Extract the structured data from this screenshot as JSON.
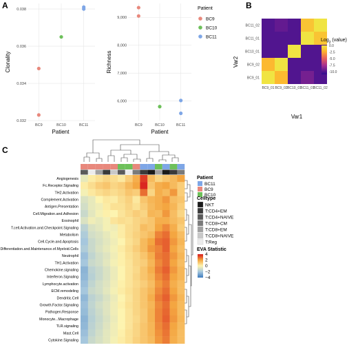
{
  "panels": {
    "a": {
      "letter": "A"
    },
    "b": {
      "letter": "B"
    },
    "c": {
      "letter": "C"
    }
  },
  "colors": {
    "BC9": "#E8887C",
    "BC10": "#6DC05A",
    "BC11": "#7EA6E6"
  },
  "chart_data": [
    {
      "type": "scatter",
      "id": "clonality",
      "xlabel": "Patient",
      "ylabel": "Clonality",
      "categories": [
        "BC9",
        "BC10",
        "BC11"
      ],
      "ylim": [
        0.032,
        0.0383
      ],
      "yticks": [
        0.032,
        0.034,
        0.036,
        0.038
      ],
      "ytick_labels": [
        "0.032",
        "0.034",
        "0.036",
        "0.038"
      ],
      "grid": true,
      "series": [
        {
          "name": "BC9",
          "category": "BC9",
          "y": [
            0.0348,
            0.0323
          ]
        },
        {
          "name": "BC10",
          "category": "BC10",
          "y": [
            0.0365
          ]
        },
        {
          "name": "BC11",
          "category": "BC11",
          "y": [
            0.0381,
            0.038
          ]
        }
      ]
    },
    {
      "type": "scatter",
      "id": "richness",
      "xlabel": "Patient",
      "ylabel": "Richness",
      "categories": [
        "BC9",
        "BC10",
        "BC11"
      ],
      "ylim": [
        5300,
        9500
      ],
      "yticks": [
        6000,
        7000,
        8000,
        9000
      ],
      "ytick_labels": [
        "6,000",
        "7,000",
        "8,000",
        "9,000"
      ],
      "grid": true,
      "legend": {
        "title": "Patient",
        "placement": "right",
        "entries": [
          "BC9",
          "BC10",
          "BC11"
        ]
      },
      "series": [
        {
          "name": "BC9",
          "category": "BC9",
          "y": [
            9350,
            9050
          ]
        },
        {
          "name": "BC10",
          "category": "BC10",
          "y": [
            5800
          ]
        },
        {
          "name": "BC11",
          "category": "BC11",
          "y": [
            6020,
            5560
          ]
        }
      ]
    },
    {
      "type": "heatmap",
      "id": "correlation",
      "xlabel": "Var1",
      "ylabel": "Var2",
      "x": [
        "BC9_01",
        "BC9_02",
        "BC10_01",
        "BC11_01",
        "BC11_02"
      ],
      "y": [
        "BC9_01",
        "BC9_02",
        "BC10_01",
        "BC11_01",
        "BC11_02"
      ],
      "legend_title": "Log",
      "legend_sub": "2",
      "legend_suffix": " (value)",
      "colorbar": {
        "range": [
          -11,
          0
        ],
        "ticks": [
          0,
          -2.5,
          -5,
          -7.5,
          -10
        ],
        "tick_labels": [
          "0.0",
          "-2.5",
          "-5.0",
          "-7.5",
          "-10.0"
        ]
      },
      "values": [
        [
          0,
          -2,
          -10,
          -9,
          -10
        ],
        [
          -2,
          0,
          -10,
          -10,
          -10
        ],
        [
          -10,
          -10,
          0,
          -10,
          -10
        ],
        [
          -10,
          -10,
          -10,
          0,
          -1.5
        ],
        [
          -10,
          -9.5,
          -10,
          -1.5,
          0
        ]
      ]
    },
    {
      "type": "heatmap",
      "id": "eva",
      "rows": [
        "Angiogenesis",
        "Fc.Receptor.Signaling",
        "TH2.Activation",
        "Complement.Activation",
        "Antigen.Presentation",
        "Cell.Migration.and.Adhesion",
        "Eosinophil",
        "T.cell.Activation.and.Checkpoint.Signaling",
        "Metabolism",
        "Cell.Cycle.and.Apoptosis",
        "Differentiation.and.Maintenance.of.Myeloid.Cells",
        "Neutrophil",
        "TH1.Activation",
        "Chemokine.signaling",
        "Interferon.Signaling",
        "Lymphocyte.activation",
        "ECM.remodeling",
        "Dendritic.Cell",
        "Growth.Factor.Signaling",
        "Pathogen.Response",
        "Monocyte...Macrophage",
        "TLR.signaling",
        "Mast.Cell",
        "Cytokine.Signaling"
      ],
      "columns": 14,
      "patient_annotation": [
        "BC9",
        "BC9",
        "BC9",
        "BC9",
        "BC9",
        "BC10",
        "BC10",
        "BC9",
        "BC11",
        "BC11",
        "BC10",
        "BC11",
        "BC10",
        "BC11"
      ],
      "celltype_annotation": [
        "T:CD4+NAIVE",
        "T:Reg",
        "T:CD8+EM",
        "T:CD4+EM",
        "T:CD8+NAIVE",
        "T:CD4+NAIVE",
        "T:Reg",
        "T:CD8+CM",
        "T:CD4+EM",
        "NKT",
        "T:CD8+EM",
        "NKT",
        "T:CD4+EM",
        "T:CD8+CM"
      ],
      "colorbar": {
        "range": [
          -4,
          4
        ],
        "ticks": [
          4,
          2,
          0,
          -2,
          -4
        ],
        "tick_labels": [
          "4",
          "2",
          "0",
          "−2",
          "−4"
        ]
      },
      "values": [
        [
          -0.5,
          0.2,
          0.5,
          0.8,
          0.6,
          0.3,
          1.0,
          1.8,
          3.5,
          1.5,
          0.8,
          1.2,
          1.5,
          2.0
        ],
        [
          0.2,
          0.6,
          1.0,
          1.2,
          0.8,
          1.0,
          1.5,
          2.0,
          3.8,
          1.2,
          1.8,
          2.0,
          1.5,
          1.0
        ],
        [
          -0.2,
          0.3,
          0.6,
          0.8,
          0.6,
          0.8,
          1.2,
          1.0,
          2.8,
          0.8,
          1.8,
          1.5,
          2.2,
          1.0
        ],
        [
          -0.8,
          -0.5,
          0.0,
          0.3,
          0.2,
          0.6,
          0.9,
          0.3,
          1.2,
          1.6,
          1.8,
          2.2,
          1.4,
          1.2
        ],
        [
          -1.0,
          -0.5,
          -0.3,
          0.2,
          0.5,
          0.5,
          0.8,
          0.5,
          1.0,
          1.5,
          1.8,
          2.0,
          1.6,
          1.0
        ],
        [
          -1.2,
          -0.6,
          -0.2,
          0.1,
          0.0,
          0.4,
          0.7,
          1.0,
          0.8,
          1.6,
          1.5,
          2.2,
          1.4,
          0.8
        ],
        [
          -0.8,
          -0.3,
          -0.5,
          -0.2,
          0.4,
          0.6,
          0.5,
          0.8,
          1.0,
          1.2,
          1.8,
          1.8,
          1.5,
          1.2
        ],
        [
          -1.5,
          -0.8,
          -0.6,
          -0.2,
          -0.3,
          0.2,
          0.6,
          0.8,
          1.4,
          1.2,
          2.0,
          2.4,
          1.8,
          1.0
        ],
        [
          -1.8,
          -1.0,
          -0.8,
          -0.5,
          -0.2,
          0.2,
          0.6,
          0.9,
          1.2,
          1.5,
          2.5,
          2.8,
          2.0,
          1.4
        ],
        [
          -2.0,
          -1.2,
          -0.9,
          -0.6,
          -0.3,
          0.0,
          0.5,
          0.8,
          1.5,
          2.0,
          2.8,
          3.0,
          2.2,
          1.6
        ],
        [
          -1.8,
          -1.2,
          -0.8,
          -0.5,
          -0.2,
          0.2,
          0.6,
          1.0,
          1.5,
          2.2,
          2.5,
          3.0,
          2.0,
          1.4
        ],
        [
          -2.2,
          -1.4,
          -1.0,
          -0.7,
          -0.3,
          0.1,
          0.5,
          0.8,
          1.2,
          1.8,
          2.6,
          2.8,
          2.2,
          1.6
        ],
        [
          -2.0,
          -1.2,
          -1.0,
          -0.6,
          -0.2,
          0.1,
          0.4,
          0.8,
          1.0,
          1.6,
          2.4,
          2.8,
          2.0,
          1.4
        ],
        [
          -2.5,
          -1.5,
          -1.2,
          -0.8,
          -0.4,
          0.0,
          0.4,
          0.7,
          1.2,
          1.8,
          2.6,
          3.0,
          2.2,
          1.6
        ],
        [
          -2.4,
          -1.6,
          -1.2,
          -0.8,
          -0.4,
          0.0,
          0.4,
          0.8,
          1.2,
          1.6,
          2.4,
          2.8,
          2.0,
          1.6
        ],
        [
          -2.2,
          -1.4,
          -1.0,
          -0.7,
          -0.3,
          0.1,
          0.4,
          0.7,
          1.0,
          1.4,
          2.2,
          2.6,
          1.8,
          1.4
        ],
        [
          -2.0,
          -1.2,
          -1.0,
          -0.6,
          -0.2,
          0.2,
          0.5,
          0.8,
          1.2,
          1.6,
          2.4,
          2.8,
          2.0,
          1.4
        ],
        [
          -2.4,
          -1.5,
          -1.2,
          -0.8,
          -0.4,
          0.0,
          0.4,
          0.8,
          1.2,
          1.8,
          2.6,
          3.0,
          2.2,
          1.6
        ],
        [
          -2.2,
          -1.4,
          -1.0,
          -0.7,
          -0.3,
          0.1,
          0.5,
          0.8,
          1.2,
          1.6,
          2.4,
          2.8,
          2.0,
          1.5
        ],
        [
          -2.3,
          -1.5,
          -1.1,
          -0.7,
          -0.3,
          0.0,
          0.4,
          0.8,
          1.1,
          1.7,
          2.5,
          2.9,
          2.1,
          1.5
        ],
        [
          -2.5,
          -1.6,
          -1.2,
          -0.8,
          -0.4,
          0.0,
          0.4,
          0.7,
          1.1,
          1.7,
          2.5,
          3.0,
          2.2,
          1.6
        ],
        [
          -2.4,
          -1.5,
          -1.1,
          -0.7,
          -0.3,
          0.0,
          0.4,
          0.8,
          1.2,
          1.6,
          2.4,
          2.8,
          2.0,
          1.5
        ],
        [
          -2.2,
          -1.4,
          -1.0,
          -0.6,
          -0.3,
          0.1,
          0.5,
          0.8,
          1.2,
          1.6,
          2.3,
          2.7,
          1.9,
          1.4
        ],
        [
          -2.0,
          -1.2,
          -0.9,
          -0.6,
          -0.2,
          0.2,
          0.5,
          0.9,
          1.2,
          1.5,
          2.2,
          2.6,
          1.8,
          1.4
        ]
      ]
    }
  ],
  "legend_c": {
    "patient_title": "Patient",
    "patient_entries": [
      "BC11",
      "BC9",
      "BC10"
    ],
    "celltype_title": "Celltype",
    "celltype_entries": [
      "NKT",
      "T:CD4+EM",
      "T:CD4+NAIVE",
      "T:CD8+CM",
      "T:CD8+EM",
      "T:CD8+NAIVE",
      "T:Reg"
    ],
    "celltype_colors": [
      "#1a1a1a",
      "#3a3a3a",
      "#5a5a5a",
      "#7a7a7a",
      "#a0a0a0",
      "#c8c8c8",
      "#ececec"
    ],
    "eva_title": "EVA Statistic"
  }
}
